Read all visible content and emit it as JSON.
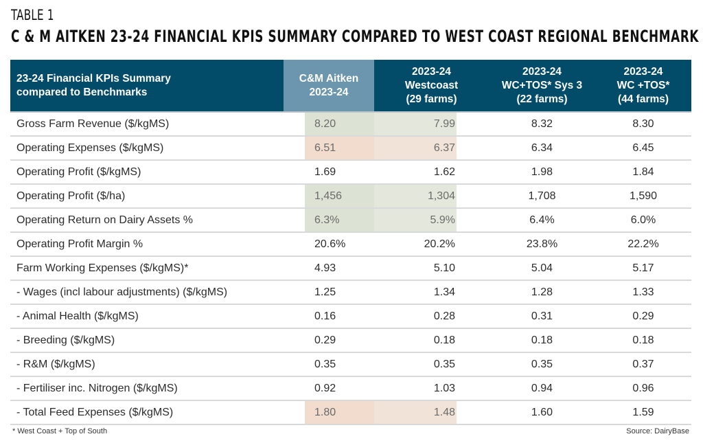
{
  "caption": {
    "label": "TABLE 1",
    "title": "C & M AITKEN 23-24 FINANCIAL KPIS SUMMARY COMPARED TO WEST COAST REGIONAL BENCHMARK"
  },
  "table": {
    "headers": [
      {
        "lines": [
          "23-24 Financial KPIs Summary",
          "compared to Benchmarks"
        ]
      },
      {
        "lines": [
          "C&M Aitken",
          "2023-24"
        ]
      },
      {
        "lines": [
          "2023-24",
          "Westcoast",
          "(29 farms)"
        ]
      },
      {
        "lines": [
          "2023-24",
          "WC+TOS* Sys 3",
          "(22 farms)"
        ]
      },
      {
        "lines": [
          "2023-24",
          "WC +TOS*",
          "(44 farms)"
        ]
      }
    ],
    "highlight_colors": {
      "header_highlight": "#6b96ad",
      "header": "#034c69",
      "green": "#dde3d4",
      "peach": "#f1dccd"
    },
    "rows": [
      {
        "label": "Gross Farm Revenue ($/kgMS)",
        "values": [
          "8.20",
          "7.99",
          "8.32",
          "8.30"
        ],
        "highlight": "green"
      },
      {
        "label": "Operating Expenses ($/kgMS)",
        "values": [
          "6.51",
          "6.37",
          "6.34",
          "6.45"
        ],
        "highlight": "peach"
      },
      {
        "label": "Operating Profit ($/kgMS)",
        "values": [
          "1.69",
          "1.62",
          "1.98",
          "1.84"
        ],
        "highlight": "none"
      },
      {
        "label": "Operating Profit ($/ha)",
        "values": [
          "1,456",
          "1,304",
          "1,708",
          "1,590"
        ],
        "highlight": "green"
      },
      {
        "label": "Operating Return on Dairy Assets %",
        "values": [
          "6.3%",
          "5.9%",
          "6.4%",
          "6.0%"
        ],
        "highlight": "green"
      },
      {
        "label": "Operating Profit Margin %",
        "values": [
          "20.6%",
          "20.2%",
          "23.8%",
          "22.2%"
        ],
        "highlight": "none"
      },
      {
        "label": "Farm Working Expenses ($/kgMS)*",
        "values": [
          "4.93",
          "5.10",
          "5.04",
          "5.17"
        ],
        "highlight": "none"
      },
      {
        "label": "- Wages (incl labour adjustments) ($/kgMS)",
        "values": [
          "1.25",
          "1.34",
          "1.28",
          "1.33"
        ],
        "highlight": "none"
      },
      {
        "label": "- Animal Health ($/kgMS)",
        "values": [
          "0.16",
          "0.28",
          "0.31",
          "0.29"
        ],
        "highlight": "none"
      },
      {
        "label": "- Breeding ($/kgMS)",
        "values": [
          "0.29",
          "0.18",
          "0.18",
          "0.18"
        ],
        "highlight": "none"
      },
      {
        "label": "- R&M ($/kgMS)",
        "values": [
          "0.35",
          "0.35",
          "0.35",
          "0.37"
        ],
        "highlight": "none"
      },
      {
        "label": "- Fertiliser inc. Nitrogen ($/kgMS)",
        "values": [
          "0.92",
          "1.03",
          "0.94",
          "0.96"
        ],
        "highlight": "none"
      },
      {
        "label": "- Total Feed Expenses ($/kgMS)",
        "values": [
          "1.80",
          "1.48",
          "1.60",
          "1.59"
        ],
        "highlight": "peach"
      }
    ]
  },
  "footer": {
    "note": "* West Coast + Top of South",
    "source": "Source: DairyBase"
  }
}
